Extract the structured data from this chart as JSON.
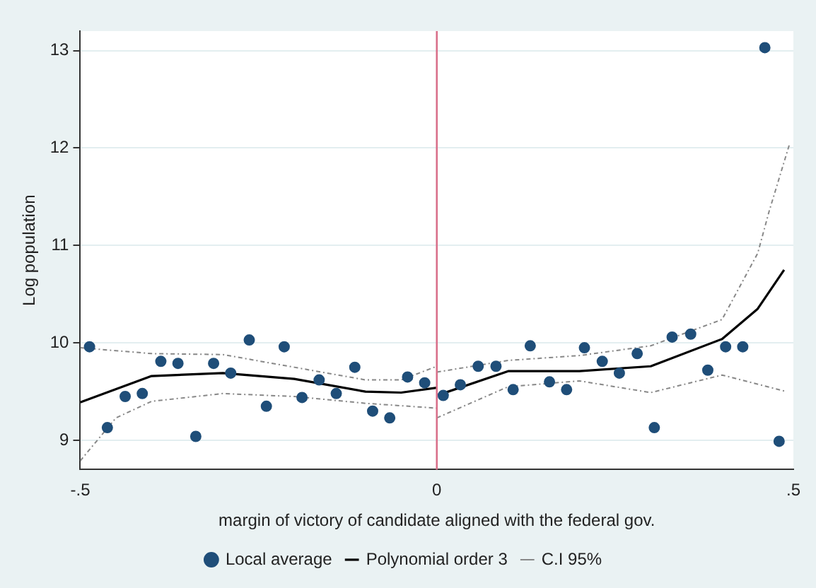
{
  "chart_data": {
    "type": "scatter",
    "xlabel": "margin of victory of candidate aligned with the federal gov.",
    "ylabel": "Log population",
    "xlim": [
      -0.5,
      0.5
    ],
    "xticks": [
      {
        "value": -0.5,
        "label": "-.5"
      },
      0,
      {
        "value": 0.5,
        "label": ".5"
      }
    ],
    "ylim": [
      8.7,
      13.2
    ],
    "yticks": [
      9,
      10,
      11,
      12,
      13
    ],
    "grid": "y",
    "legend": "bottom",
    "marker": "circle",
    "ref_lines": [
      {
        "axis": "x",
        "value": 0,
        "color": "#d9708a"
      }
    ],
    "series": [
      {
        "name": "Local average",
        "color": "#1f4e79",
        "x": [
          -0.487,
          -0.462,
          -0.437,
          -0.413,
          -0.387,
          -0.363,
          -0.338,
          -0.313,
          -0.289,
          -0.263,
          -0.239,
          -0.214,
          -0.189,
          -0.165,
          -0.141,
          -0.115,
          -0.09,
          -0.066,
          -0.041,
          -0.017,
          0.009,
          0.033,
          0.058,
          0.083,
          0.107,
          0.131,
          0.158,
          0.182,
          0.207,
          0.232,
          0.256,
          0.281,
          0.305,
          0.33,
          0.356,
          0.38,
          0.405,
          0.429,
          0.46,
          0.48
        ],
        "values": [
          9.96,
          9.13,
          9.45,
          9.48,
          9.81,
          9.79,
          9.04,
          9.79,
          9.69,
          10.03,
          9.35,
          9.96,
          9.44,
          9.62,
          9.48,
          9.75,
          9.3,
          9.23,
          9.65,
          9.59,
          9.46,
          9.57,
          9.76,
          9.76,
          9.52,
          9.97,
          9.6,
          9.52,
          9.95,
          9.81,
          9.69,
          9.89,
          9.13,
          10.06,
          10.09,
          9.72,
          9.96,
          9.96,
          13.03,
          8.99
        ]
      },
      {
        "name": "Polynomial order 3",
        "type": "line",
        "marker": "none",
        "line_style": "solid",
        "color": "#000000",
        "x": [
          -0.5,
          -0.4,
          -0.3,
          -0.2,
          -0.1,
          -0.05,
          0
        ],
        "values": [
          9.39,
          9.66,
          9.69,
          9.63,
          9.5,
          9.49,
          9.54
        ]
      },
      {
        "type": "line",
        "marker": "none",
        "line_style": "solid",
        "color": "#000000",
        "x": [
          0,
          0.1,
          0.2,
          0.3,
          0.4,
          0.45,
          0.487
        ],
        "values": [
          9.46,
          9.71,
          9.71,
          9.76,
          10.04,
          10.35,
          10.75
        ]
      },
      {
        "name": "C.I 95%",
        "type": "line",
        "marker": "none",
        "line_style": "dashed",
        "color": "#888888",
        "x": [
          -0.5,
          -0.4,
          -0.3,
          -0.2,
          -0.1,
          -0.05,
          0
        ],
        "values": [
          9.95,
          9.89,
          9.88,
          9.75,
          9.62,
          9.62,
          9.76
        ]
      },
      {
        "type": "line",
        "marker": "none",
        "line_style": "dashed",
        "color": "#888888",
        "x": [
          0,
          0.1,
          0.2,
          0.3,
          0.4,
          0.45,
          0.466,
          0.495
        ],
        "values": [
          9.7,
          9.82,
          9.87,
          9.97,
          10.24,
          10.92,
          11.35,
          12.05
        ]
      },
      {
        "type": "line",
        "marker": "none",
        "line_style": "dashed",
        "color": "#888888",
        "x": [
          -0.5,
          -0.45,
          -0.4,
          -0.3,
          -0.2,
          -0.1,
          0
        ],
        "values": [
          8.79,
          9.23,
          9.4,
          9.48,
          9.45,
          9.38,
          9.33
        ]
      },
      {
        "type": "line",
        "marker": "none",
        "line_style": "dashed",
        "color": "#888888",
        "x": [
          0,
          0.1,
          0.2,
          0.3,
          0.4,
          0.49
        ],
        "values": [
          9.23,
          9.55,
          9.61,
          9.49,
          9.67,
          9.5
        ]
      }
    ]
  }
}
